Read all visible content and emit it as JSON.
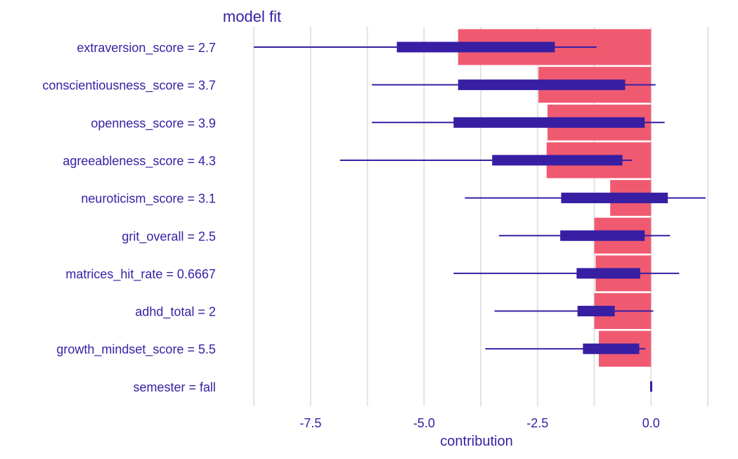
{
  "chart_data": {
    "type": "bar",
    "title": "model  fit",
    "xlabel": "contribution",
    "ylabel": "",
    "xlim": [
      -9.0,
      1.25
    ],
    "x_ticks": [
      -7.5,
      -5.0,
      -2.5,
      0.0
    ],
    "x_tick_labels": [
      "-7.5",
      "-5.0",
      "-2.5",
      "0.0"
    ],
    "grid_x": [
      -8.75,
      -7.5,
      -6.25,
      -5.0,
      -3.75,
      -2.5,
      -1.25,
      0.0,
      1.25
    ],
    "grid": true,
    "legend": "none",
    "colors": {
      "bar": "#f05a71",
      "boxplot": "#371ea3",
      "text": "#371ea3",
      "grid": "#e3e3e3"
    },
    "categories": [
      "extraversion_score = 2.7",
      "conscientiousness_score = 3.7",
      "openness_score = 3.9",
      "agreeableness_score = 4.3",
      "neuroticism_score = 3.1",
      "grit_overall = 2.5",
      "matrices_hit_rate = 0.6667",
      "adhd_total = 2",
      "growth_mindset_score = 5.5",
      "semester = fall"
    ],
    "values": [
      -4.25,
      -2.48,
      -2.28,
      -2.3,
      -0.9,
      -1.25,
      -1.22,
      -1.25,
      -1.15,
      0.0
    ],
    "boxplots": [
      {
        "min": -8.75,
        "q1": -5.6,
        "q3": -2.12,
        "max": -1.2
      },
      {
        "min": -6.15,
        "q1": -4.25,
        "q3": -0.57,
        "max": 0.1
      },
      {
        "min": -6.15,
        "q1": -4.35,
        "q3": -0.14,
        "max": 0.3
      },
      {
        "min": -6.85,
        "q1": -3.5,
        "q3": -0.63,
        "max": -0.42
      },
      {
        "min": -4.1,
        "q1": -1.98,
        "q3": 0.37,
        "max": 1.2
      },
      {
        "min": -3.35,
        "q1": -2.0,
        "q3": -0.14,
        "max": 0.42
      },
      {
        "min": -4.35,
        "q1": -1.64,
        "q3": -0.24,
        "max": 0.62
      },
      {
        "min": -3.45,
        "q1": -1.62,
        "q3": -0.8,
        "max": 0.05
      },
      {
        "min": -3.65,
        "q1": -1.5,
        "q3": -0.26,
        "max": -0.13
      },
      {
        "min": -0.02,
        "q1": -0.02,
        "q3": 0.02,
        "max": 0.02
      }
    ]
  }
}
